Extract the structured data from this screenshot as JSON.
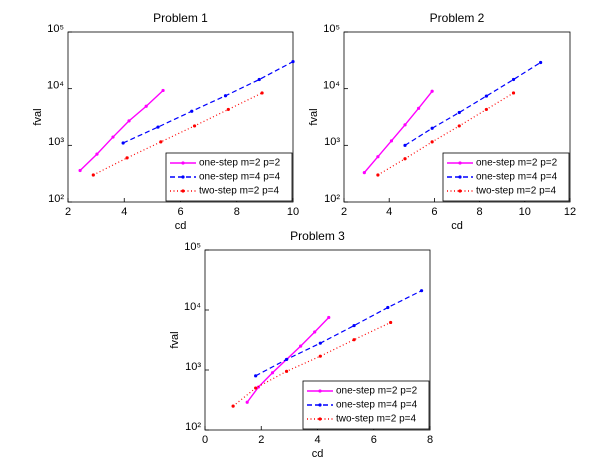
{
  "chart_data": [
    {
      "type": "line",
      "title": "Problem 1",
      "x_label": "cd",
      "y_label": "fval",
      "log_y": true,
      "legend": "lower right",
      "xlim": [
        2,
        10
      ],
      "xticks": [
        2,
        4,
        6,
        8,
        10
      ],
      "ylim": [
        100,
        100000
      ],
      "yticks": [
        {
          "value": 100,
          "label": "10²"
        },
        {
          "value": 1000,
          "label": "10³"
        },
        {
          "value": 10000,
          "label": "10⁴"
        },
        {
          "value": 100000,
          "label": "10⁵"
        }
      ],
      "series": [
        {
          "name": "one-step m=2 p=2",
          "color": "#ff00ff",
          "line_style": "solid",
          "x": [
            2.43,
            3.03,
            3.6,
            4.17,
            4.78,
            5.38
          ],
          "values": [
            360,
            700,
            1400,
            2700,
            4900,
            9300
          ]
        },
        {
          "name": "one-step m=4 p=4",
          "color": "#0000ff",
          "line_style": "dashed",
          "x": [
            3.96,
            5.2,
            6.4,
            7.6,
            8.8,
            10
          ],
          "values": [
            1100,
            2100,
            4000,
            7500,
            14500,
            30000
          ]
        },
        {
          "name": "two-step m=2 p=4",
          "color": "#ff0000",
          "line_style": "dotted",
          "x": [
            2.9,
            4.1,
            5.3,
            6.5,
            7.7,
            8.9
          ],
          "values": [
            300,
            600,
            1150,
            2200,
            4300,
            8400
          ]
        }
      ]
    },
    {
      "type": "line",
      "title": "Problem 2",
      "x_label": "cd",
      "y_label": "fval",
      "log_y": true,
      "legend": "lower right",
      "xlim": [
        2,
        12
      ],
      "xticks": [
        2,
        4,
        6,
        8,
        10,
        12
      ],
      "ylim": [
        100,
        100000
      ],
      "yticks": [
        {
          "value": 100,
          "label": "10²"
        },
        {
          "value": 1000,
          "label": "10³"
        },
        {
          "value": 10000,
          "label": "10⁴"
        },
        {
          "value": 100000,
          "label": "10⁵"
        }
      ],
      "series": [
        {
          "name": "one-step m=2 p=2",
          "color": "#ff00ff",
          "line_style": "solid",
          "x": [
            2.9,
            3.5,
            4.1,
            4.7,
            5.3,
            5.9
          ],
          "values": [
            330,
            630,
            1200,
            2300,
            4500,
            9000
          ]
        },
        {
          "name": "one-step m=4 p=4",
          "color": "#0000ff",
          "line_style": "dashed",
          "x": [
            4.7,
            5.9,
            7.1,
            8.3,
            9.5,
            10.7
          ],
          "values": [
            1000,
            2000,
            3800,
            7400,
            14500,
            29000
          ]
        },
        {
          "name": "two-step m=2 p=4",
          "color": "#ff0000",
          "line_style": "dotted",
          "x": [
            3.5,
            4.7,
            5.9,
            7.1,
            8.3,
            9.5
          ],
          "values": [
            300,
            580,
            1150,
            2200,
            4300,
            8400
          ]
        }
      ]
    },
    {
      "type": "line",
      "title": "Problem 3",
      "x_label": "cd",
      "y_label": "fval",
      "log_y": true,
      "legend": "lower right",
      "xlim": [
        0,
        8
      ],
      "xticks": [
        0,
        2,
        4,
        6,
        8
      ],
      "ylim": [
        100,
        100000
      ],
      "yticks": [
        {
          "value": 100,
          "label": "10²"
        },
        {
          "value": 1000,
          "label": "10³"
        },
        {
          "value": 10000,
          "label": "10⁴"
        },
        {
          "value": 100000,
          "label": "10⁵"
        }
      ],
      "series": [
        {
          "name": "one-step m=2 p=2",
          "color": "#ff00ff",
          "line_style": "solid",
          "x": [
            1.5,
            1.9,
            2.4,
            2.9,
            3.4,
            3.9,
            4.4
          ],
          "values": [
            290,
            520,
            900,
            1500,
            2500,
            4300,
            7500
          ]
        },
        {
          "name": "one-step m=4 p=4",
          "color": "#0000ff",
          "line_style": "dashed",
          "x": [
            1.8,
            2.9,
            4.1,
            5.3,
            6.5,
            7.7
          ],
          "values": [
            800,
            1500,
            2800,
            5500,
            11000,
            21000
          ]
        },
        {
          "name": "two-step m=2 p=4",
          "color": "#ff0000",
          "line_style": "dotted",
          "x": [
            1,
            1.8,
            2.9,
            4.1,
            5.3,
            6.6
          ],
          "values": [
            250,
            500,
            950,
            1700,
            3200,
            6200
          ]
        }
      ]
    }
  ]
}
